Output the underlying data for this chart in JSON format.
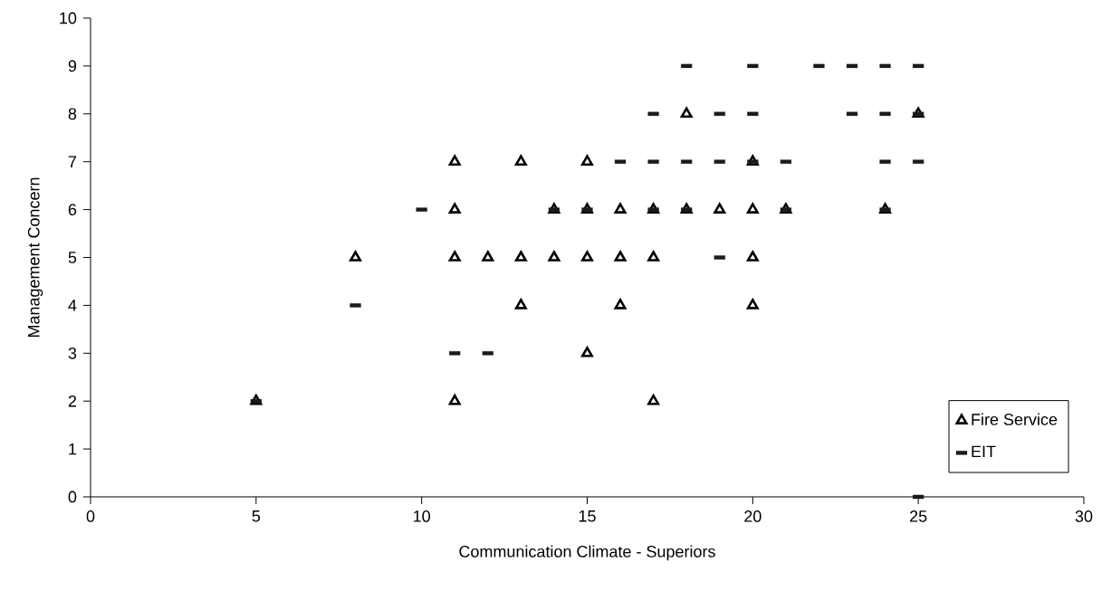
{
  "chart_data": {
    "type": "scatter",
    "xlabel": "Communication Climate - Superiors",
    "ylabel": "Management Concern",
    "xlim": [
      0,
      30
    ],
    "ylim": [
      0,
      10
    ],
    "xticks": [
      0,
      5,
      10,
      15,
      20,
      25,
      30
    ],
    "yticks": [
      0,
      1,
      2,
      3,
      4,
      5,
      6,
      7,
      8,
      9,
      10
    ],
    "grid": false,
    "legend": "bottom right",
    "series": [
      {
        "name": "Fire Service",
        "color": "#000000",
        "marker": "triangle",
        "x": [
          5,
          8,
          11,
          11,
          11,
          11,
          12,
          13,
          13,
          13,
          14,
          14,
          15,
          15,
          15,
          15,
          16,
          16,
          16,
          17,
          17,
          17,
          18,
          18,
          19,
          20,
          20,
          20,
          20,
          21,
          24,
          25
        ],
        "values": [
          2,
          5,
          7,
          6,
          5,
          2,
          5,
          7,
          5,
          4,
          5,
          6,
          7,
          6,
          5,
          3,
          6,
          5,
          4,
          6,
          5,
          2,
          8,
          6,
          6,
          7,
          6,
          5,
          4,
          6,
          6,
          8
        ]
      },
      {
        "name": "EIT",
        "color": "#1a1a1a",
        "marker": "square",
        "x": [
          5,
          8,
          10,
          11,
          12,
          14,
          15,
          16,
          17,
          17,
          17,
          18,
          18,
          18,
          19,
          19,
          19,
          20,
          20,
          20,
          21,
          21,
          22,
          23,
          23,
          24,
          24,
          24,
          24,
          25,
          25,
          25,
          25
        ],
        "values": [
          2,
          4,
          6,
          3,
          3,
          6,
          6,
          7,
          8,
          7,
          6,
          9,
          7,
          6,
          8,
          7,
          5,
          9,
          8,
          7,
          7,
          6,
          9,
          9,
          8,
          9,
          8,
          7,
          6,
          9,
          8,
          7,
          0
        ]
      }
    ]
  }
}
